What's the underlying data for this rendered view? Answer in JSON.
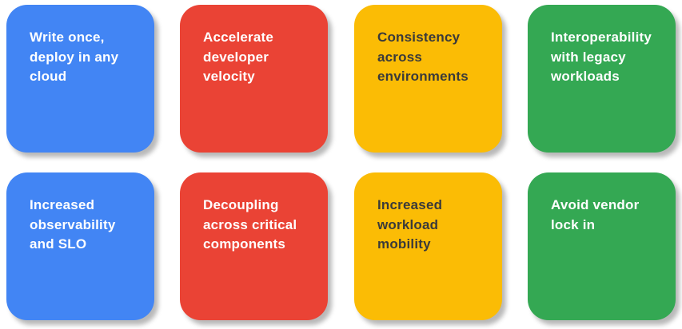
{
  "tiles": [
    {
      "text": "Write once,\ndeploy in any\ncloud",
      "color": "#4285f4",
      "text_color": "#ffffff"
    },
    {
      "text": "Accelerate\ndeveloper\nvelocity",
      "color": "#ea4335",
      "text_color": "#ffffff"
    },
    {
      "text": "Consistency\nacross\nenvironments",
      "color": "#fbbc05",
      "text_color": "#3a3a3a"
    },
    {
      "text": "Interoperability\nwith legacy\nworkloads",
      "color": "#34a853",
      "text_color": "#ffffff"
    },
    {
      "text": "Increased\nobservability\nand SLO",
      "color": "#4285f4",
      "text_color": "#ffffff"
    },
    {
      "text": "Decoupling\nacross critical\ncomponents",
      "color": "#ea4335",
      "text_color": "#ffffff"
    },
    {
      "text": "Increased\nworkload\nmobility",
      "color": "#fbbc05",
      "text_color": "#3a3a3a"
    },
    {
      "text": "Avoid vendor\nlock in",
      "color": "#34a853",
      "text_color": "#ffffff"
    }
  ]
}
